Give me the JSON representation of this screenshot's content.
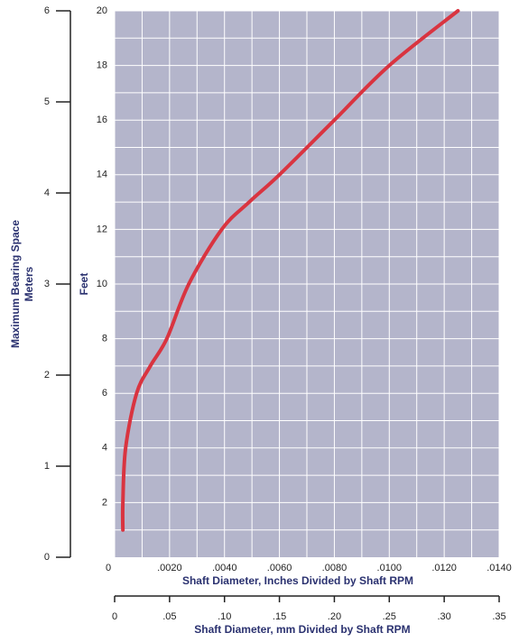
{
  "chart_data": {
    "type": "line",
    "ylabel": "Feet",
    "y2label": "Maximum Bearing Space",
    "y2sublabel": "Meters",
    "xlabel": "Shaft Diameter, Inches Divided by Shaft RPM",
    "x2label": "Shaft Diameter, mm Divided by Shaft RPM",
    "x": [
      0.0003,
      0.0003,
      0.0004,
      0.0008,
      0.0013,
      0.0019,
      0.0027,
      0.0039,
      0.0049,
      0.006,
      0.008,
      0.01,
      0.0125
    ],
    "series": [
      {
        "color": "#d93440",
        "values": [
          1,
          2,
          4,
          6,
          7,
          8,
          10,
          12,
          13,
          14,
          16,
          18,
          20
        ]
      }
    ],
    "xlim": [
      0,
      0.014
    ],
    "xticks": [
      0,
      {
        "value": 0.002,
        "label": ".0020"
      },
      {
        "value": 0.004,
        "label": ".0040"
      },
      {
        "value": 0.006,
        "label": ".0060"
      },
      {
        "value": 0.008,
        "label": ".0080"
      },
      {
        "value": 0.01,
        "label": ".0100"
      },
      {
        "value": 0.012,
        "label": ".0120"
      },
      {
        "value": 0.014,
        "label": ".0140"
      }
    ],
    "xgrid": [
      0.001,
      0.003,
      0.005,
      0.007,
      0.009,
      0.011,
      0.013
    ],
    "ylim": [
      0,
      20
    ],
    "yticks": [
      2,
      4,
      6,
      8,
      10,
      12,
      14,
      16,
      18,
      20
    ],
    "ygrid": [
      1,
      3,
      5,
      7,
      9,
      11,
      13,
      15,
      17,
      19
    ],
    "y2lim": [
      0,
      6
    ],
    "y2ticks": [
      0,
      1,
      2,
      3,
      4,
      5,
      6
    ],
    "x2lim": [
      0,
      0.35
    ],
    "x2ticks": [
      0,
      {
        "value": 0.05,
        "label": ".05"
      },
      {
        "value": 0.1,
        "label": ".10"
      },
      {
        "value": 0.15,
        "label": ".15"
      },
      {
        "value": 0.2,
        "label": ".20"
      },
      {
        "value": 0.25,
        "label": ".25"
      },
      {
        "value": 0.3,
        "label": ".30"
      },
      {
        "value": 0.35,
        "label": ".35"
      }
    ],
    "background": "#b4b5cb",
    "grid": true
  }
}
